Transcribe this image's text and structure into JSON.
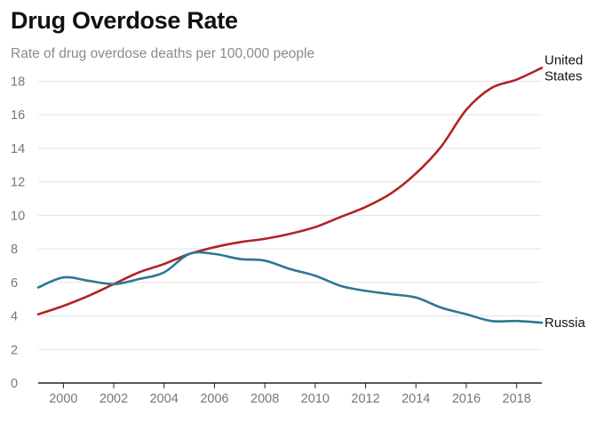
{
  "chart_data": {
    "type": "line",
    "title": "Drug Overdose Rate",
    "subtitle": "Rate of drug overdose deaths per 100,000 people",
    "xlabel": "",
    "ylabel": "",
    "xlim": [
      1999,
      2019
    ],
    "ylim": [
      0,
      18.5
    ],
    "x_ticks": [
      2000,
      2002,
      2004,
      2006,
      2008,
      2010,
      2012,
      2014,
      2016,
      2018
    ],
    "y_ticks": [
      0,
      2,
      4,
      6,
      8,
      10,
      12,
      14,
      16,
      18
    ],
    "grid": true,
    "x": [
      1999,
      2000,
      2001,
      2002,
      2003,
      2004,
      2005,
      2006,
      2007,
      2008,
      2009,
      2010,
      2011,
      2012,
      2013,
      2014,
      2015,
      2016,
      2017,
      2018,
      2019
    ],
    "series": [
      {
        "name": "United States",
        "label_lines": [
          "United",
          "States"
        ],
        "color": "#b22222",
        "values": [
          4.1,
          4.6,
          5.2,
          5.9,
          6.6,
          7.1,
          7.7,
          8.1,
          8.4,
          8.6,
          8.9,
          9.3,
          9.9,
          10.5,
          11.3,
          12.5,
          14.1,
          16.3,
          17.6,
          18.1,
          18.8
        ]
      },
      {
        "name": "Russia",
        "label_lines": [
          "Russia"
        ],
        "color": "#2c7893",
        "values": [
          5.7,
          6.3,
          6.1,
          5.9,
          6.2,
          6.6,
          7.7,
          7.7,
          7.4,
          7.3,
          6.8,
          6.4,
          5.8,
          5.5,
          5.3,
          5.1,
          4.5,
          4.1,
          3.7,
          3.7,
          3.6
        ]
      }
    ]
  }
}
